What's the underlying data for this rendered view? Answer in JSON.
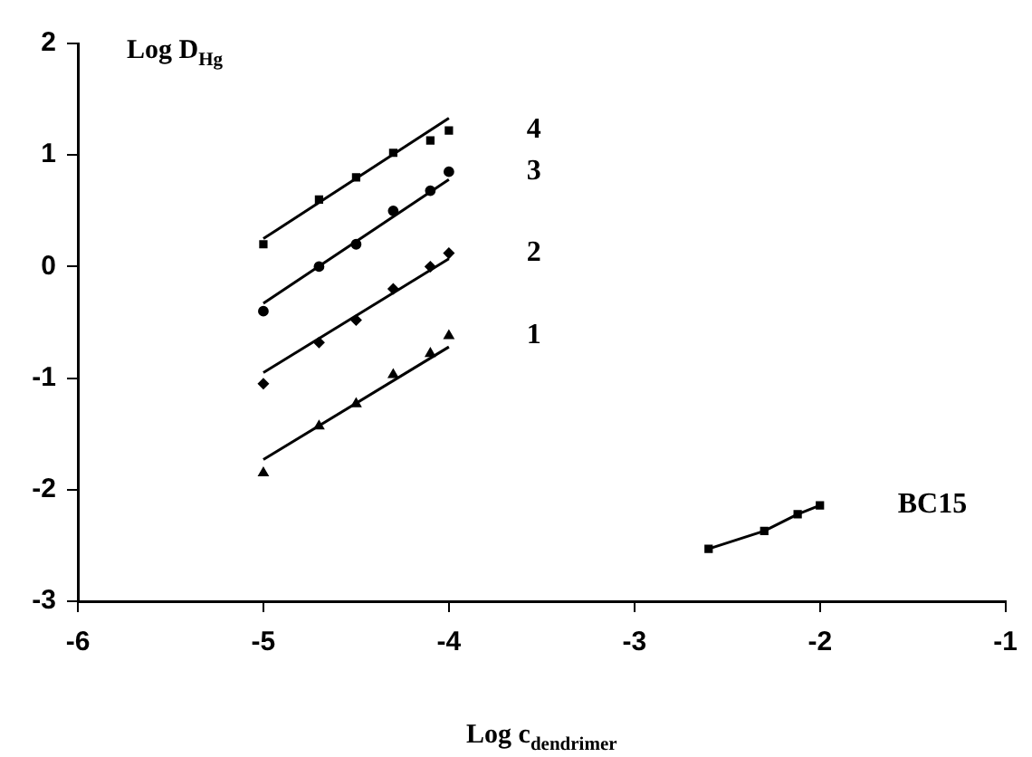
{
  "chart_data": {
    "type": "scatter",
    "xlabel": "Log c$_{dendrimer}$",
    "ylabel": "Log D$_{Hg}$",
    "xlim": [
      -6,
      -1
    ],
    "xticks": [
      -6,
      -5,
      -4,
      -3,
      -2,
      -1
    ],
    "ylim": [
      -3,
      2
    ],
    "yticks": [
      -3,
      -2,
      -1,
      0,
      1,
      2
    ],
    "grid": false,
    "legend": false,
    "series": [
      {
        "name": "4",
        "type": "scatter",
        "marker": "square",
        "color": "#000000",
        "x": [
          -5,
          -4.7,
          -4.5,
          -4.3,
          -4.1,
          -4
        ],
        "values": [
          0.2,
          0.6,
          0.8,
          1.02,
          1.13,
          1.22
        ]
      },
      {
        "name": "3",
        "type": "scatter",
        "marker": "circle",
        "color": "#000000",
        "x": [
          -5,
          -4.7,
          -4.5,
          -4.3,
          -4.1,
          -4
        ],
        "values": [
          -0.4,
          0.0,
          0.2,
          0.5,
          0.68,
          0.85
        ]
      },
      {
        "name": "2",
        "type": "scatter",
        "marker": "diamond",
        "color": "#000000",
        "x": [
          -5,
          -4.7,
          -4.5,
          -4.3,
          -4.1,
          -4
        ],
        "values": [
          -1.05,
          -0.68,
          -0.48,
          -0.2,
          0.0,
          0.12
        ]
      },
      {
        "name": "1",
        "type": "scatter",
        "marker": "triangle",
        "color": "#000000",
        "x": [
          -5,
          -4.7,
          -4.5,
          -4.3,
          -4.1,
          -4
        ],
        "values": [
          -1.85,
          -1.43,
          -1.23,
          -0.97,
          -0.78,
          -0.62
        ]
      },
      {
        "type": "line",
        "marker": "none",
        "color": "#000000",
        "x": [
          -5,
          -4
        ],
        "values": [
          0.25,
          1.33
        ]
      },
      {
        "type": "line",
        "marker": "none",
        "color": "#000000",
        "x": [
          -5,
          -4
        ],
        "values": [
          -0.33,
          0.78
        ]
      },
      {
        "type": "line",
        "marker": "none",
        "color": "#000000",
        "x": [
          -5,
          -4
        ],
        "values": [
          -0.95,
          0.07
        ]
      },
      {
        "type": "line",
        "marker": "none",
        "color": "#000000",
        "x": [
          -5,
          -4
        ],
        "values": [
          -1.73,
          -0.72
        ]
      },
      {
        "name": "BC15",
        "type": "line",
        "marker": "square",
        "color": "#000000",
        "x": [
          -2.6,
          -2.3,
          -2.12,
          -2.0
        ],
        "values": [
          -2.53,
          -2.37,
          -2.22,
          -2.14
        ]
      }
    ]
  }
}
